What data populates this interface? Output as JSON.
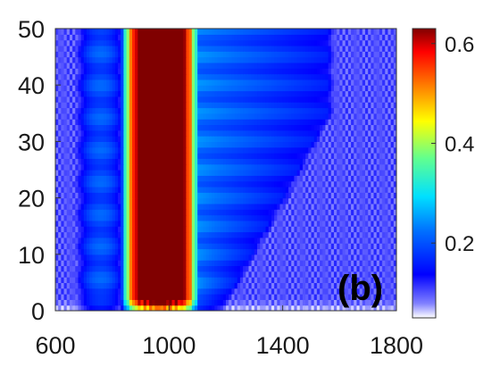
{
  "chart_data": {
    "type": "heatmap",
    "xlim": [
      600,
      1800
    ],
    "ylim": [
      0,
      50
    ],
    "x_ticks": [
      "600",
      "1000",
      "1400",
      "1800"
    ],
    "y_ticks": [
      "0",
      "10",
      "20",
      "30",
      "40",
      "50"
    ],
    "xlabel": "",
    "ylabel": "",
    "panel_label": "(b)",
    "colorbar": {
      "range": [
        0.05,
        0.63
      ],
      "ticks": [
        "0.2",
        "0.4",
        "0.6"
      ],
      "tick_values": [
        0.2,
        0.4,
        0.6
      ],
      "colormap": "jet"
    },
    "features": [
      {
        "name": "central band",
        "x_range": [
          840,
          1100
        ],
        "y_range": [
          0,
          50
        ],
        "value": 0.6
      },
      {
        "name": "left wing",
        "x_range": [
          680,
          840
        ],
        "y_range": [
          0,
          50
        ],
        "value": 0.22
      },
      {
        "name": "right wing",
        "x_range": [
          1100,
          1560
        ],
        "y_range": [
          0,
          50
        ],
        "value": 0.25
      },
      {
        "name": "background",
        "x_range": [
          600,
          1800
        ],
        "y_range": [
          0,
          50
        ],
        "value": 0.1
      }
    ]
  }
}
